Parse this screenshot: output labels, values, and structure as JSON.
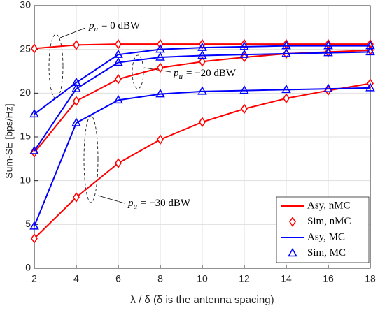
{
  "chart_data": {
    "type": "line",
    "xlabel": "λ / δ (δ is the antenna spacing)",
    "ylabel": "Sum-SE [bps/Hz]",
    "x": [
      2,
      4,
      6,
      8,
      10,
      12,
      14,
      16,
      18
    ],
    "series": [
      {
        "name": "Asy, nMC",
        "color": "#ff0000",
        "marker": "none",
        "values": [
          [
            25.1,
            25.5,
            25.6,
            25.6,
            25.6,
            25.6,
            25.6,
            25.6,
            25.6
          ],
          [
            13.2,
            19.1,
            21.6,
            22.9,
            23.6,
            24.1,
            24.5,
            24.7,
            24.9
          ],
          [
            3.4,
            8.1,
            12.0,
            14.7,
            16.7,
            18.2,
            19.4,
            20.3,
            21.1
          ]
        ]
      },
      {
        "name": "Sim, nMC",
        "color": "#ff0000",
        "marker": "diamond",
        "values": [
          [
            25.1,
            25.5,
            25.6,
            25.6,
            25.6,
            25.6,
            25.6,
            25.6,
            25.6
          ],
          [
            13.2,
            19.1,
            21.6,
            22.9,
            23.6,
            24.1,
            24.5,
            24.7,
            24.9
          ],
          [
            3.4,
            8.1,
            12.0,
            14.7,
            16.7,
            18.2,
            19.4,
            20.3,
            21.1
          ]
        ]
      },
      {
        "name": "Asy, MC",
        "color": "#0000ff",
        "marker": "none",
        "values": [
          [
            17.6,
            21.2,
            24.4,
            25.0,
            25.2,
            25.3,
            25.4,
            25.4,
            25.4
          ],
          [
            13.4,
            20.5,
            23.5,
            24.1,
            24.3,
            24.4,
            24.5,
            24.6,
            24.7
          ],
          [
            4.8,
            16.6,
            19.2,
            19.9,
            20.2,
            20.3,
            20.4,
            20.5,
            20.6
          ]
        ]
      },
      {
        "name": "Sim, MC",
        "color": "#0000ff",
        "marker": "triangle",
        "values": [
          [
            17.6,
            21.2,
            24.4,
            25.0,
            25.2,
            25.3,
            25.4,
            25.4,
            25.4
          ],
          [
            13.4,
            20.5,
            23.5,
            24.1,
            24.3,
            24.4,
            24.5,
            24.6,
            24.7
          ],
          [
            4.8,
            16.6,
            19.2,
            19.9,
            20.2,
            20.3,
            20.4,
            20.5,
            20.6
          ]
        ]
      }
    ],
    "annotations": [
      {
        "symbol": "p",
        "subscript": "u",
        "text": "= 0 dBW"
      },
      {
        "symbol": "p",
        "subscript": "u",
        "text": "= −20 dBW"
      },
      {
        "symbol": "p",
        "subscript": "u",
        "text": "= −30 dBW"
      }
    ],
    "xlim": [
      2,
      18
    ],
    "xticks": [
      2,
      4,
      6,
      8,
      10,
      12,
      14,
      16,
      18
    ],
    "ylim": [
      0,
      30
    ],
    "yticks": [
      0,
      5,
      10,
      15,
      20,
      25,
      30
    ],
    "grid": true,
    "legend": "lower right"
  }
}
